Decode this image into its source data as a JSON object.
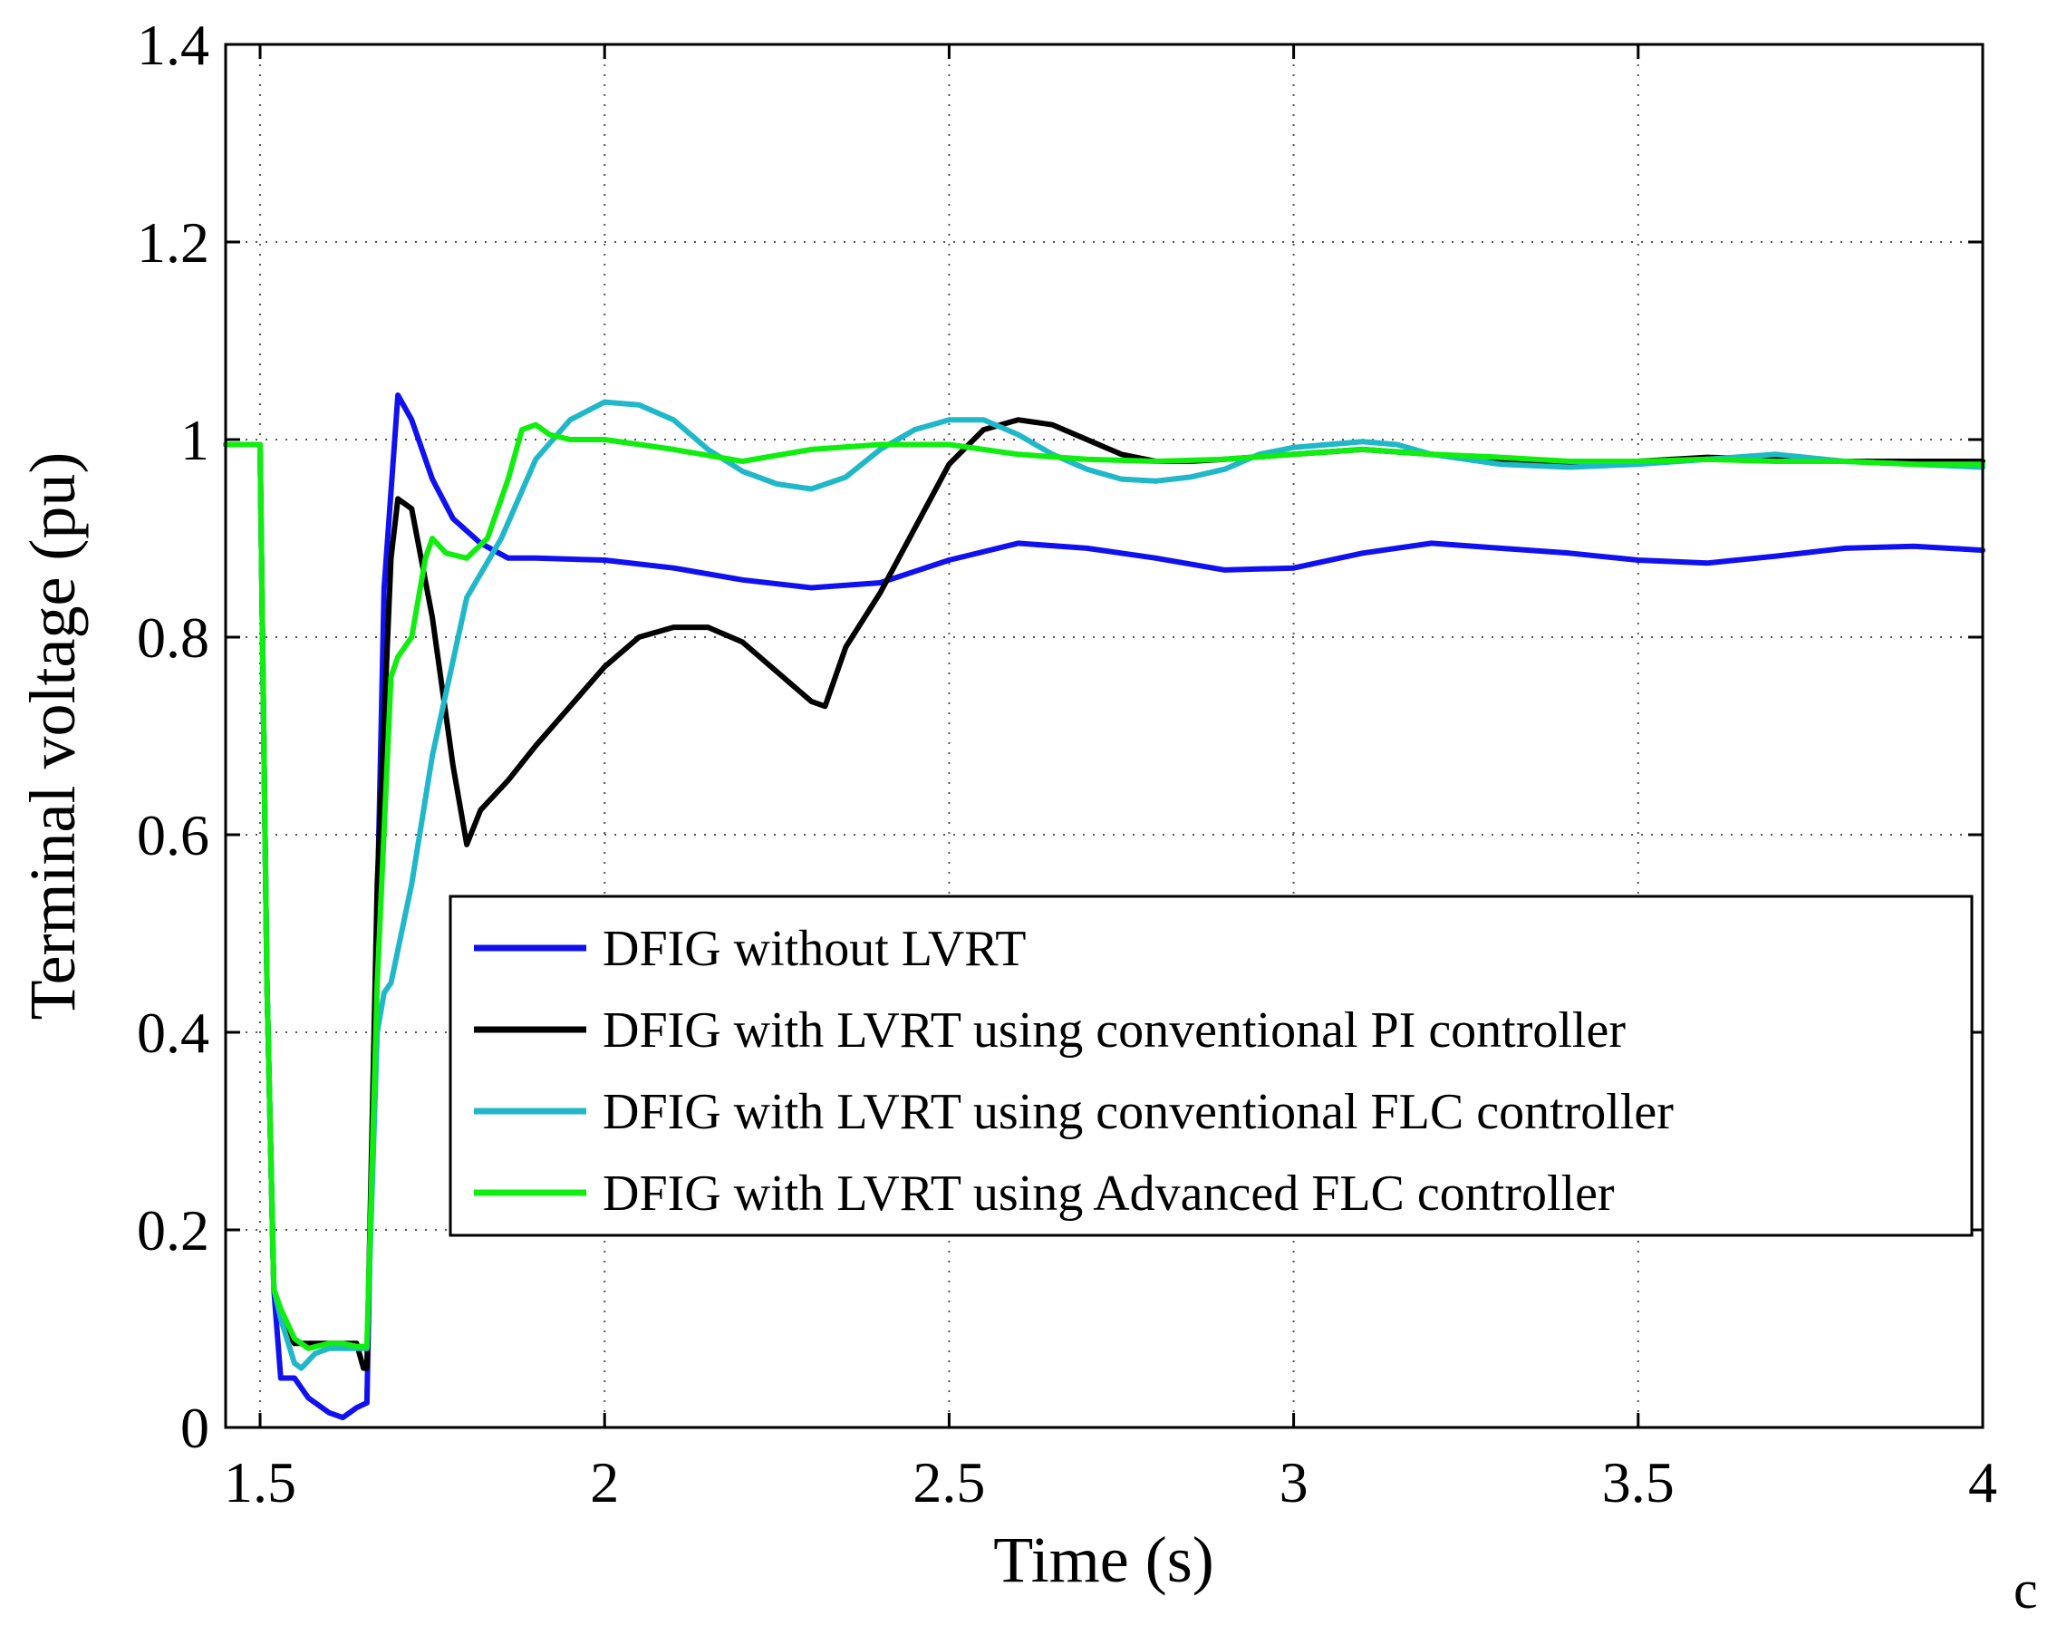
{
  "chart_data": {
    "type": "line",
    "title": "",
    "xlabel": "Time (s)",
    "ylabel": "Terminal voltage (pu)",
    "xlim": [
      1.45,
      4.0
    ],
    "ylim": [
      0,
      1.4
    ],
    "xticks": [
      1.5,
      2,
      2.5,
      3,
      3.5,
      4
    ],
    "xtick_labels": [
      "1.5",
      "2",
      "2.5",
      "3",
      "3.5",
      "4"
    ],
    "yticks": [
      0,
      0.2,
      0.4,
      0.6,
      0.8,
      1.0,
      1.2,
      1.4
    ],
    "ytick_labels": [
      "0",
      "0.2",
      "0.4",
      "0.6",
      "0.8",
      "1",
      "1.2",
      "1.4"
    ],
    "grid": true,
    "legend_position": "lower-right",
    "corner_label": "c",
    "series": [
      {
        "name": "DFIG without LVRT",
        "color": "#1010f0",
        "x": [
          1.45,
          1.5,
          1.51,
          1.52,
          1.53,
          1.55,
          1.57,
          1.6,
          1.62,
          1.64,
          1.655,
          1.66,
          1.68,
          1.7,
          1.72,
          1.75,
          1.78,
          1.82,
          1.86,
          1.9,
          2.0,
          2.1,
          2.2,
          2.3,
          2.4,
          2.5,
          2.6,
          2.7,
          2.8,
          2.9,
          3.0,
          3.1,
          3.2,
          3.3,
          3.4,
          3.5,
          3.6,
          3.7,
          3.8,
          3.9,
          4.0
        ],
        "y": [
          0.995,
          0.995,
          0.45,
          0.14,
          0.05,
          0.05,
          0.03,
          0.015,
          0.01,
          0.02,
          0.025,
          0.2,
          0.85,
          1.045,
          1.02,
          0.96,
          0.92,
          0.895,
          0.88,
          0.88,
          0.878,
          0.87,
          0.858,
          0.85,
          0.855,
          0.878,
          0.895,
          0.89,
          0.88,
          0.868,
          0.87,
          0.885,
          0.895,
          0.89,
          0.885,
          0.878,
          0.875,
          0.882,
          0.89,
          0.892,
          0.888
        ]
      },
      {
        "name": "DFIG with LVRT using conventional PI controller",
        "color": "#000000",
        "x": [
          1.45,
          1.5,
          1.51,
          1.52,
          1.53,
          1.55,
          1.57,
          1.6,
          1.62,
          1.64,
          1.65,
          1.655,
          1.67,
          1.69,
          1.7,
          1.72,
          1.75,
          1.78,
          1.8,
          1.82,
          1.86,
          1.9,
          1.95,
          2.0,
          2.05,
          2.1,
          2.15,
          2.2,
          2.25,
          2.3,
          2.32,
          2.35,
          2.4,
          2.45,
          2.5,
          2.55,
          2.6,
          2.65,
          2.7,
          2.75,
          2.8,
          2.85,
          2.9,
          3.0,
          3.1,
          3.2,
          3.3,
          3.4,
          3.5,
          3.6,
          3.7,
          3.8,
          3.9,
          4.0
        ],
        "y": [
          0.995,
          0.995,
          0.45,
          0.14,
          0.11,
          0.085,
          0.085,
          0.085,
          0.085,
          0.085,
          0.06,
          0.06,
          0.55,
          0.88,
          0.94,
          0.93,
          0.82,
          0.67,
          0.59,
          0.625,
          0.655,
          0.69,
          0.73,
          0.77,
          0.8,
          0.81,
          0.81,
          0.795,
          0.765,
          0.735,
          0.73,
          0.79,
          0.845,
          0.91,
          0.975,
          1.01,
          1.02,
          1.015,
          1.0,
          0.985,
          0.978,
          0.978,
          0.98,
          0.985,
          0.99,
          0.985,
          0.98,
          0.975,
          0.978,
          0.982,
          0.98,
          0.978,
          0.978,
          0.978
        ]
      },
      {
        "name": "DFIG with LVRT using conventional FLC controller",
        "color": "#20b8c8",
        "x": [
          1.45,
          1.5,
          1.51,
          1.52,
          1.53,
          1.55,
          1.56,
          1.58,
          1.6,
          1.62,
          1.64,
          1.655,
          1.67,
          1.68,
          1.69,
          1.72,
          1.75,
          1.8,
          1.85,
          1.9,
          1.95,
          2.0,
          2.05,
          2.1,
          2.15,
          2.2,
          2.25,
          2.3,
          2.35,
          2.4,
          2.45,
          2.5,
          2.55,
          2.6,
          2.65,
          2.7,
          2.75,
          2.8,
          2.85,
          2.9,
          2.95,
          3.0,
          3.05,
          3.1,
          3.15,
          3.2,
          3.3,
          3.4,
          3.5,
          3.6,
          3.7,
          3.8,
          3.9,
          4.0
        ],
        "y": [
          0.995,
          0.995,
          0.45,
          0.14,
          0.11,
          0.065,
          0.06,
          0.075,
          0.08,
          0.08,
          0.08,
          0.08,
          0.4,
          0.44,
          0.45,
          0.55,
          0.68,
          0.84,
          0.9,
          0.98,
          1.02,
          1.038,
          1.035,
          1.02,
          0.99,
          0.968,
          0.955,
          0.95,
          0.962,
          0.99,
          1.01,
          1.02,
          1.02,
          1.005,
          0.985,
          0.97,
          0.96,
          0.958,
          0.962,
          0.97,
          0.985,
          0.992,
          0.995,
          0.998,
          0.995,
          0.985,
          0.975,
          0.972,
          0.975,
          0.98,
          0.985,
          0.978,
          0.975,
          0.972
        ]
      },
      {
        "name": "DFIG with LVRT using Advanced FLC controller",
        "color": "#10ee10",
        "x": [
          1.45,
          1.5,
          1.51,
          1.52,
          1.53,
          1.55,
          1.57,
          1.6,
          1.62,
          1.64,
          1.655,
          1.67,
          1.69,
          1.7,
          1.72,
          1.74,
          1.75,
          1.77,
          1.8,
          1.83,
          1.86,
          1.88,
          1.9,
          1.92,
          1.95,
          2.0,
          2.1,
          2.2,
          2.3,
          2.4,
          2.5,
          2.6,
          2.7,
          2.8,
          2.9,
          3.0,
          3.1,
          3.2,
          3.3,
          3.4,
          3.5,
          3.6,
          3.7,
          3.8,
          3.9,
          4.0
        ],
        "y": [
          0.995,
          0.995,
          0.45,
          0.14,
          0.12,
          0.09,
          0.08,
          0.085,
          0.085,
          0.082,
          0.082,
          0.45,
          0.76,
          0.78,
          0.8,
          0.88,
          0.9,
          0.885,
          0.88,
          0.9,
          0.96,
          1.01,
          1.015,
          1.005,
          1.0,
          1.0,
          0.99,
          0.978,
          0.99,
          0.995,
          0.995,
          0.985,
          0.98,
          0.978,
          0.98,
          0.985,
          0.99,
          0.985,
          0.982,
          0.978,
          0.978,
          0.98,
          0.978,
          0.978,
          0.975,
          0.975
        ]
      }
    ]
  }
}
